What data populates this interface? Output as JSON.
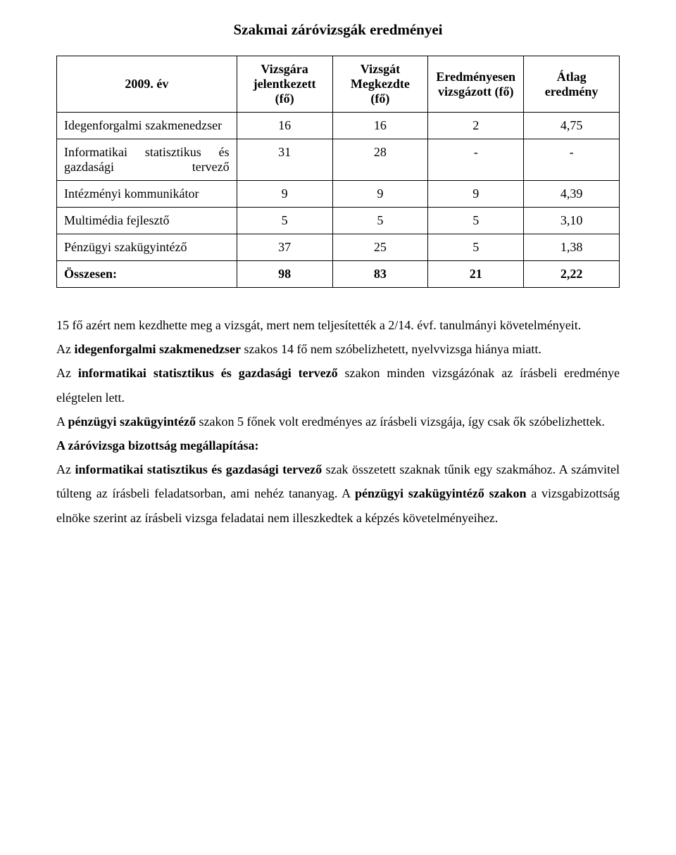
{
  "title": "Szakmai záróvizsgák eredményei",
  "table": {
    "columns": [
      {
        "label": "2009. év",
        "width": "32%"
      },
      {
        "label": "Vizsgára jelentkezett (fő)",
        "width": "17%"
      },
      {
        "label": "Vizsgát Megkezdte (fő)",
        "width": "17%"
      },
      {
        "label": "Eredményesen vizsgázott (fő)",
        "width": "17%"
      },
      {
        "label": "Átlag eredmény",
        "width": "17%"
      }
    ],
    "rows": [
      {
        "label": "Idegenforgalmi szakmenedzser",
        "values": [
          "16",
          "16",
          "2",
          "4,75"
        ]
      },
      {
        "label": "Informatikai statisztikus és gazdasági tervező",
        "justify": true,
        "values": [
          "31",
          "28",
          "-",
          "-"
        ]
      },
      {
        "label": "Intézményi kommunikátor",
        "values": [
          "9",
          "9",
          "9",
          "4,39"
        ]
      },
      {
        "label": "Multimédia fejlesztő",
        "values": [
          "5",
          "5",
          "5",
          "3,10"
        ]
      },
      {
        "label": "Pénzügyi szakügyintéző",
        "values": [
          "37",
          "25",
          "5",
          "1,38"
        ]
      },
      {
        "label": "Összesen:",
        "bold": true,
        "values": [
          "98",
          "83",
          "21",
          "2,22"
        ]
      }
    ],
    "border_color": "#000000",
    "background_color": "#ffffff",
    "font_size": 18
  },
  "body": {
    "p1_pre": "15 fő azért nem kezdhette meg a vizsgát, mert nem teljesítették a 2/14. évf. tanulmányi követelményeit.",
    "p2_pre": "Az ",
    "p2_b1": "idegenforgalmi szakmenedzser",
    "p2_post": " szakos 14 fő nem szóbelizhetett, nyelvvizsga hiánya miatt.",
    "p3_pre": "Az ",
    "p3_b1": "informatikai statisztikus és gazdasági tervező",
    "p3_post": " szakon minden vizsgázónak az írásbeli eredménye elégtelen lett.",
    "p4_pre": "A ",
    "p4_b1": "pénzügyi szakügyintéző",
    "p4_post": " szakon 5 főnek volt eredményes az írásbeli vizsgája, így csak ők szóbelizhettek.",
    "p5_b": "A záróvizsga bizottság megállapítása:",
    "p6_pre": "Az ",
    "p6_b1": "informatikai statisztikus és gazdasági tervező",
    "p6_mid": " szak összetett szaknak tűnik egy szakmához. A számvitel túlteng az írásbeli feladatsorban, ami nehéz tananyag. A ",
    "p6_b2": "pénzügyi szakügyintéző szakon",
    "p6_post": " a vizsgabizottság elnöke szerint az írásbeli vizsga feladatai nem illeszkedtek a képzés követelményeihez."
  }
}
